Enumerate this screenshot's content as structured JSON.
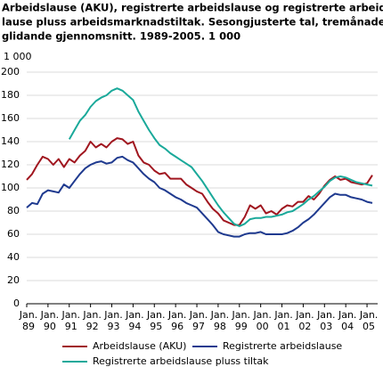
{
  "chart_data": {
    "type": "line",
    "title": [
      "Arbeidslause (AKU), registrerte arbeidslause og registrerte arbeids-",
      "lause pluss arbeidsmarknadstiltak. Sesongjusterte tal, tremånaders",
      "glidande gjennomsnitt. 1989-2005. 1 000"
    ],
    "y_unit": "1 000",
    "x": [
      1989,
      1989.25,
      1989.5,
      1989.75,
      1990,
      1990.25,
      1990.5,
      1990.75,
      1991,
      1991.25,
      1991.5,
      1991.75,
      1992,
      1992.25,
      1992.5,
      1992.75,
      1993,
      1993.25,
      1993.5,
      1993.75,
      1994,
      1994.25,
      1994.5,
      1994.75,
      1995,
      1995.25,
      1995.5,
      1995.75,
      1996,
      1996.25,
      1996.5,
      1996.75,
      1997,
      1997.25,
      1997.5,
      1997.75,
      1998,
      1998.25,
      1998.5,
      1998.75,
      1999,
      1999.25,
      1999.5,
      1999.75,
      2000,
      2000.25,
      2000.5,
      2000.75,
      2001,
      2001.25,
      2001.5,
      2001.75,
      2002,
      2002.25,
      2002.5,
      2002.75,
      2003,
      2003.25,
      2003.5,
      2003.75,
      2004,
      2004.25,
      2004.5,
      2004.75,
      2005,
      2005.25
    ],
    "series": [
      {
        "name": "Arbeidslause (AKU)",
        "color": "#a0161f",
        "values": [
          107,
          112,
          120,
          127,
          125,
          120,
          125,
          118,
          125,
          122,
          128,
          132,
          140,
          135,
          138,
          135,
          140,
          143,
          142,
          138,
          140,
          128,
          122,
          120,
          115,
          112,
          113,
          108,
          108,
          108,
          103,
          100,
          97,
          95,
          88,
          82,
          78,
          72,
          70,
          68,
          68,
          75,
          85,
          82,
          85,
          78,
          80,
          77,
          82,
          85,
          84,
          88,
          88,
          93,
          90,
          95,
          102,
          107,
          110,
          107,
          108,
          105,
          104,
          103,
          104,
          111
        ]
      },
      {
        "name": "Registrerte arbeidslause",
        "color": "#1f3a8f",
        "values": [
          83,
          87,
          86,
          95,
          98,
          97,
          96,
          103,
          100,
          106,
          112,
          117,
          120,
          122,
          123,
          121,
          122,
          126,
          127,
          124,
          122,
          117,
          112,
          108,
          105,
          100,
          98,
          95,
          92,
          90,
          87,
          85,
          83,
          78,
          73,
          68,
          62,
          60,
          59,
          58,
          58,
          60,
          61,
          61,
          62,
          60,
          60,
          60,
          60,
          61,
          63,
          66,
          70,
          73,
          77,
          82,
          87,
          92,
          95,
          94,
          94,
          92,
          91,
          90,
          88,
          87
        ]
      },
      {
        "name": "Registrerte arbeidslause pluss tiltak",
        "color": "#1aa99a",
        "values": [
          null,
          null,
          null,
          null,
          null,
          null,
          null,
          null,
          142,
          150,
          158,
          163,
          170,
          175,
          178,
          180,
          184,
          186,
          184,
          180,
          176,
          166,
          158,
          150,
          143,
          137,
          134,
          130,
          127,
          124,
          121,
          118,
          112,
          106,
          99,
          92,
          85,
          79,
          74,
          69,
          67,
          69,
          73,
          74,
          74,
          75,
          75,
          76,
          77,
          79,
          80,
          83,
          86,
          90,
          93,
          97,
          101,
          106,
          109,
          110,
          109,
          107,
          105,
          104,
          103,
          102
        ]
      }
    ],
    "xlim": [
      1989,
      2005.5
    ],
    "xticks": [
      {
        "value": 1989,
        "label": "Jan. 89"
      },
      {
        "value": 1990,
        "label": "Jan. 90"
      },
      {
        "value": 1991,
        "label": "Jan. 91"
      },
      {
        "value": 1992,
        "label": "Jan. 92"
      },
      {
        "value": 1993,
        "label": "Jan. 93"
      },
      {
        "value": 1994,
        "label": "Jan. 94"
      },
      {
        "value": 1995,
        "label": "Jan. 95"
      },
      {
        "value": 1996,
        "label": "Jan. 96"
      },
      {
        "value": 1997,
        "label": "Jan. 97"
      },
      {
        "value": 1998,
        "label": "Jan. 98"
      },
      {
        "value": 1999,
        "label": "Jan. 99"
      },
      {
        "value": 2000,
        "label": "Jan. 00"
      },
      {
        "value": 2001,
        "label": "Jan. 01"
      },
      {
        "value": 2002,
        "label": "Jan. 02"
      },
      {
        "value": 2003,
        "label": "Jan. 03"
      },
      {
        "value": 2004,
        "label": "Jan. 04"
      },
      {
        "value": 2005,
        "label": "Jan. 05"
      }
    ],
    "ylim": [
      0,
      200
    ],
    "yticks": [
      0,
      20,
      40,
      60,
      80,
      100,
      120,
      140,
      160,
      180,
      200
    ],
    "grid": true
  }
}
